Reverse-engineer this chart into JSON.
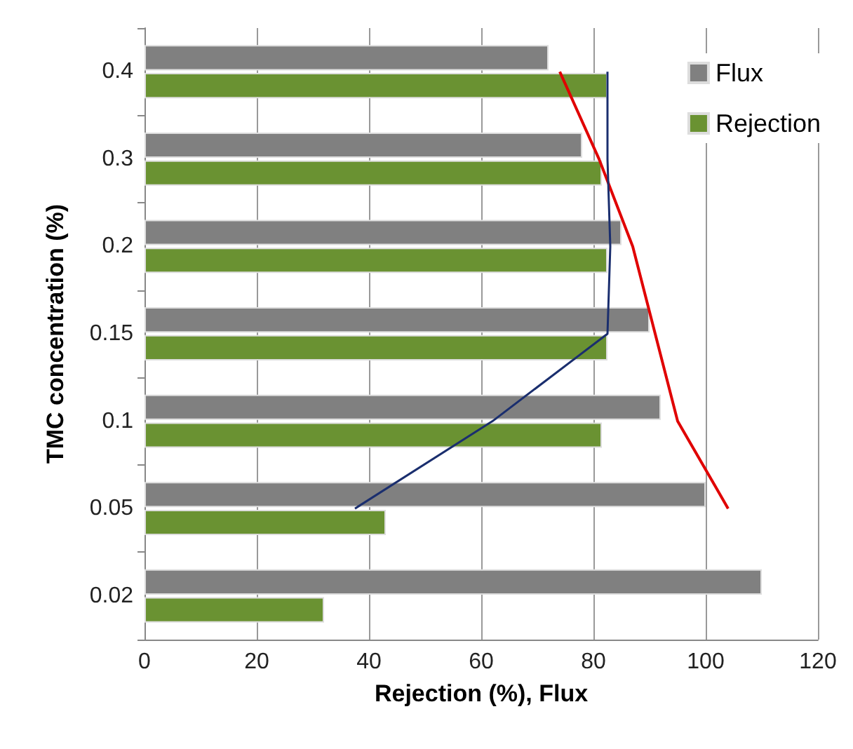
{
  "chart_data": {
    "type": "bar",
    "orientation": "horizontal",
    "xlabel": "Rejection (%), Flux",
    "ylabel": "TMC concentration (%)",
    "categories": [
      "0.4",
      "0.3",
      "0.2",
      "0.15",
      "0.1",
      "0.05",
      "0.02"
    ],
    "series": [
      {
        "name": "Flux",
        "color": "#808080",
        "values": [
          72,
          78,
          85,
          90,
          92,
          100,
          110
        ]
      },
      {
        "name": "Rejection",
        "color": "#6a9232",
        "values": [
          82.5,
          81.5,
          82.5,
          82.5,
          81.5,
          43,
          32
        ]
      },
      {
        "type": "line",
        "color": "#e00000",
        "values": [
          74,
          81,
          87,
          91,
          95,
          104,
          null
        ]
      },
      {
        "type": "line",
        "color": "#1a2e6e",
        "values": [
          82.5,
          82.5,
          83,
          82.5,
          62,
          37.5,
          null
        ]
      }
    ],
    "xlim": [
      0,
      120
    ],
    "xticks": [
      0,
      20,
      40,
      60,
      80,
      100,
      120
    ],
    "grid": "x",
    "legend": "top right",
    "marker": "none"
  }
}
